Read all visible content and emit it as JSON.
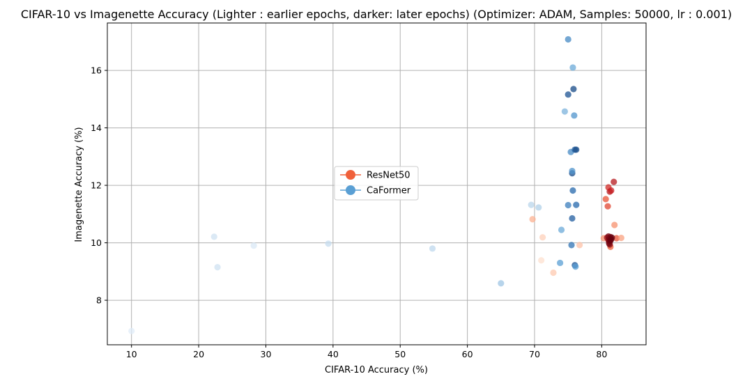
{
  "chart_data": {
    "type": "scatter",
    "title": "CIFAR-10 vs Imagenette Accuracy (Lighter : earlier epochs, darker: later epochs) (Optimizer: ADAM, Samples: 50000, lr : 0.001)",
    "xlabel": "CIFAR-10 Accuracy (%)",
    "ylabel": "Imagenette Accuracy (%)",
    "xlim": [
      6.4,
      86.6
    ],
    "ylim": [
      6.45,
      17.65
    ],
    "xticks": [
      10,
      20,
      30,
      40,
      50,
      60,
      70,
      80
    ],
    "yticks": [
      8,
      10,
      12,
      14,
      16
    ],
    "grid": true,
    "legend_position": "center",
    "series": [
      {
        "name": "ResNet50",
        "color": "#f0603a",
        "points": [
          [
            69.7,
            10.82,
            0.25
          ],
          [
            71.0,
            9.39,
            0.05
          ],
          [
            71.2,
            10.19,
            0.12
          ],
          [
            72.8,
            8.96,
            0.15
          ],
          [
            76.7,
            9.92,
            0.18
          ],
          [
            80.3,
            10.16,
            0.35
          ],
          [
            80.6,
            11.52,
            0.55
          ],
          [
            80.9,
            11.27,
            0.6
          ],
          [
            81.0,
            11.93,
            0.7
          ],
          [
            81.2,
            11.78,
            0.8
          ],
          [
            81.4,
            11.82,
            0.75
          ],
          [
            81.8,
            12.12,
            0.8
          ],
          [
            81.9,
            10.62,
            0.35
          ],
          [
            82.2,
            10.16,
            0.55
          ],
          [
            82.9,
            10.17,
            0.3
          ],
          [
            81.3,
            9.86,
            0.5
          ],
          [
            80.8,
            10.18,
            0.85
          ],
          [
            81.0,
            10.1,
            0.9
          ],
          [
            81.1,
            10.05,
            0.92
          ],
          [
            81.2,
            10.14,
            0.95
          ],
          [
            81.3,
            10.2,
            0.97
          ],
          [
            81.4,
            10.12,
            0.99
          ],
          [
            81.2,
            9.94,
            0.9
          ],
          [
            81.0,
            10.22,
            0.95
          ],
          [
            81.5,
            10.18,
            1.0
          ],
          [
            81.1,
            9.98,
            0.97
          ],
          [
            81.3,
            10.08,
            1.0
          ]
        ]
      },
      {
        "name": "CaFormer",
        "color": "#5a9fd4",
        "points": [
          [
            10.0,
            6.93,
            0.02
          ],
          [
            22.3,
            10.21,
            0.1
          ],
          [
            22.8,
            9.15,
            0.1
          ],
          [
            28.2,
            9.9,
            0.05
          ],
          [
            39.3,
            9.97,
            0.15
          ],
          [
            54.8,
            9.8,
            0.18
          ],
          [
            65.0,
            8.59,
            0.3
          ],
          [
            69.5,
            11.32,
            0.2
          ],
          [
            70.6,
            11.23,
            0.25
          ],
          [
            73.8,
            9.3,
            0.5
          ],
          [
            74.0,
            10.45,
            0.45
          ],
          [
            74.5,
            14.57,
            0.4
          ],
          [
            75.0,
            17.08,
            0.6
          ],
          [
            75.0,
            11.31,
            0.65
          ],
          [
            75.0,
            15.16,
            0.85
          ],
          [
            75.6,
            10.85,
            0.8
          ],
          [
            75.5,
            9.92,
            0.7
          ],
          [
            75.6,
            12.42,
            0.88
          ],
          [
            75.6,
            12.5,
            0.55
          ],
          [
            75.4,
            13.16,
            0.6
          ],
          [
            75.7,
            11.82,
            0.75
          ],
          [
            75.7,
            16.1,
            0.45
          ],
          [
            75.8,
            15.35,
            0.9
          ],
          [
            75.9,
            14.43,
            0.55
          ],
          [
            76.0,
            13.24,
            0.8
          ],
          [
            76.2,
            13.24,
            0.9
          ],
          [
            76.2,
            11.32,
            0.75
          ],
          [
            76.0,
            9.22,
            0.85
          ],
          [
            76.1,
            9.17,
            0.5
          ]
        ]
      }
    ]
  }
}
